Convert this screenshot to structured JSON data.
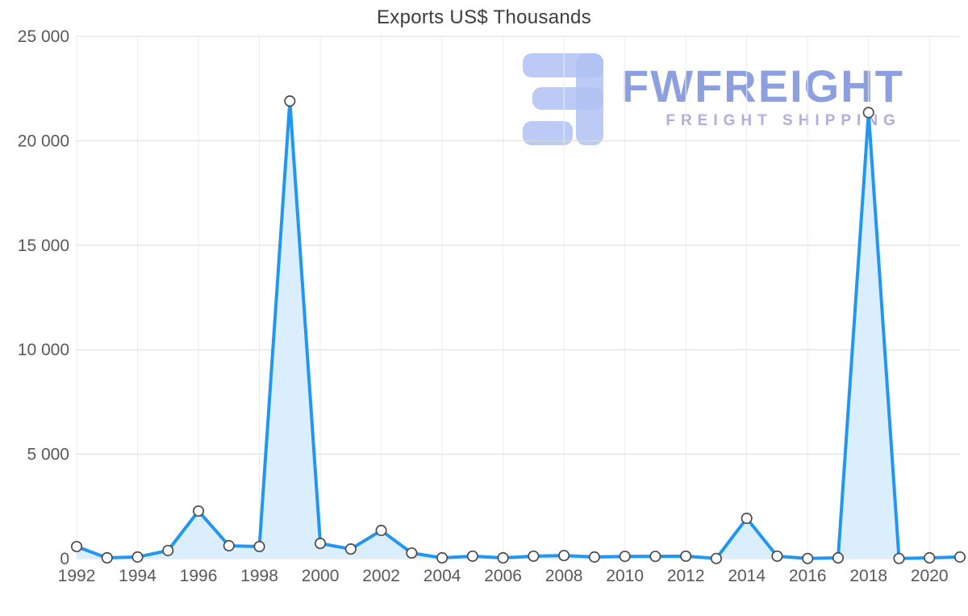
{
  "chart_data": {
    "type": "line",
    "title": "Exports US$ Thousands",
    "xlabel": "",
    "ylabel": "",
    "x": [
      1992,
      1993,
      1994,
      1995,
      1996,
      1997,
      1998,
      1999,
      2000,
      2001,
      2002,
      2003,
      2004,
      2005,
      2006,
      2007,
      2008,
      2009,
      2010,
      2011,
      2012,
      2013,
      2014,
      2015,
      2016,
      2017,
      2018,
      2019,
      2020,
      2021
    ],
    "values": [
      580,
      40,
      80,
      390,
      2280,
      620,
      580,
      21900,
      730,
      460,
      1350,
      270,
      40,
      120,
      40,
      120,
      150,
      80,
      110,
      110,
      120,
      10,
      1930,
      120,
      10,
      40,
      21350,
      10,
      40,
      80
    ],
    "ylim": [
      0,
      25000
    ],
    "y_ticks": [
      0,
      5000,
      10000,
      15000,
      20000,
      25000
    ],
    "y_tick_labels": [
      "0",
      "5 000",
      "10 000",
      "15 000",
      "20 000",
      "25 000"
    ],
    "x_tick_years": [
      1992,
      1994,
      1996,
      1998,
      2000,
      2002,
      2004,
      2006,
      2008,
      2010,
      2012,
      2014,
      2016,
      2018,
      2020
    ],
    "grid": "light gray horizontal and vertical gridlines",
    "legend": "none",
    "line_color": "#2196f3",
    "area_fill": "#dbeefd",
    "marker_fill": "#ffffff",
    "marker_stroke": "#4a4a4a",
    "tick_color": "#595959"
  },
  "watermark": {
    "brand": "FWFREIGHT",
    "tagline": "FREIGHT SHIPPING",
    "brand_color": "#8096dd",
    "tagline_color": "#aaa4de",
    "logo_color": "#a9bdf1"
  }
}
